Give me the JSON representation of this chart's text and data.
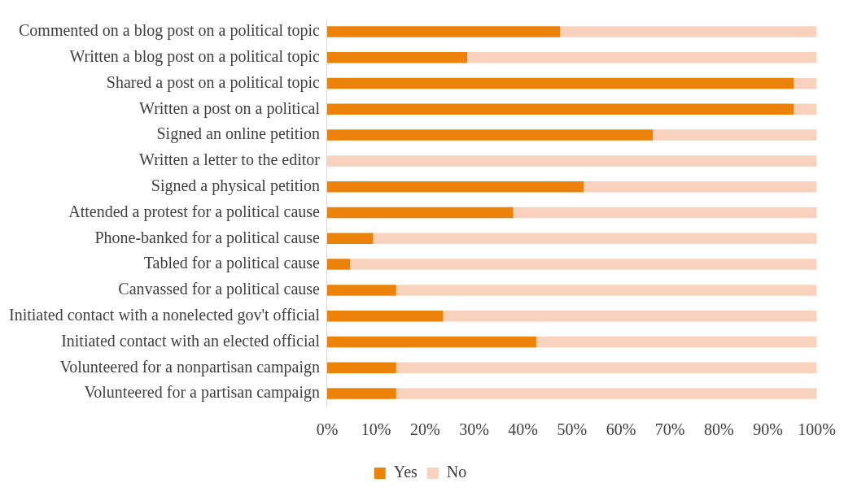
{
  "chart_data": {
    "type": "bar",
    "orientation": "horizontal",
    "stacked": true,
    "categories": [
      "Commented on a blog post on a political topic",
      "Written a blog post on a political topic",
      "Shared a post on a political topic",
      "Written a post on a political",
      "Signed an online petition",
      "Written a letter to the editor",
      "Signed a physical petition",
      "Attended a protest for a political cause",
      "Phone-banked for a political cause",
      "Tabled for a political cause",
      "Canvassed for a political cause",
      "Initiated contact with a nonelected gov't official",
      "Initiated contact with an elected official",
      "Volunteered for a nonpartisan campaign",
      "Volunteered for a partisan campaign"
    ],
    "series": [
      {
        "name": "Yes",
        "color": "#ec820a",
        "values": [
          47.6,
          28.6,
          95.3,
          95.3,
          66.5,
          0,
          52.4,
          38,
          9.4,
          4.7,
          14.1,
          23.7,
          42.7,
          14.1,
          14.1
        ]
      },
      {
        "name": "No",
        "color": "#f9d2bd",
        "values": [
          52.4,
          71.4,
          4.7,
          4.7,
          33.5,
          100,
          47.6,
          62,
          90.6,
          95.3,
          85.9,
          76.3,
          57.3,
          85.9,
          85.9
        ]
      }
    ],
    "xlim": [
      0,
      100
    ],
    "xticks": [
      {
        "value": 0,
        "label": "0%"
      },
      {
        "value": 10,
        "label": "10%"
      },
      {
        "value": 20,
        "label": "20%"
      },
      {
        "value": 30,
        "label": "30%"
      },
      {
        "value": 40,
        "label": "40%"
      },
      {
        "value": 50,
        "label": "50%"
      },
      {
        "value": 60,
        "label": "60%"
      },
      {
        "value": 70,
        "label": "70%"
      },
      {
        "value": 80,
        "label": "80%"
      },
      {
        "value": 90,
        "label": "90%"
      },
      {
        "value": 100,
        "label": "100%"
      }
    ],
    "grid": false,
    "legend": "bottom"
  }
}
